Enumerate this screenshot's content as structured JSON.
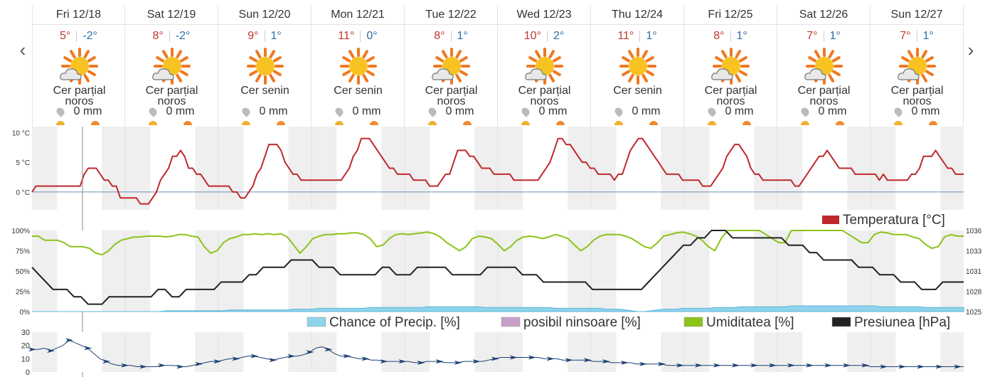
{
  "nav": {
    "prev_glyph": "‹",
    "next_glyph": "›"
  },
  "days": [
    {
      "name": "Fri 12/18",
      "max": "5°",
      "min": "-2°",
      "icon": "partly-cloudy-icon",
      "desc1": "Cer parțial",
      "desc2": "noros",
      "precip": "0 mm"
    },
    {
      "name": "Sat 12/19",
      "max": "8°",
      "min": "-2°",
      "icon": "partly-cloudy-icon",
      "desc1": "Cer parțial",
      "desc2": "noros",
      "precip": "0 mm"
    },
    {
      "name": "Sun 12/20",
      "max": "9°",
      "min": "1°",
      "icon": "sun-icon",
      "desc1": "Cer senin",
      "desc2": "",
      "precip": "0 mm"
    },
    {
      "name": "Mon 12/21",
      "max": "11°",
      "min": "0°",
      "icon": "sun-icon",
      "desc1": "Cer senin",
      "desc2": "",
      "precip": "0 mm"
    },
    {
      "name": "Tue 12/22",
      "max": "8°",
      "min": "1°",
      "icon": "partly-cloudy-icon",
      "desc1": "Cer parțial",
      "desc2": "noros",
      "precip": "0 mm"
    },
    {
      "name": "Wed 12/23",
      "max": "10°",
      "min": "2°",
      "icon": "partly-cloudy-icon",
      "desc1": "Cer parțial",
      "desc2": "noros",
      "precip": "0 mm"
    },
    {
      "name": "Thu 12/24",
      "max": "11°",
      "min": "1°",
      "icon": "sun-icon",
      "desc1": "Cer senin",
      "desc2": "",
      "precip": "0 mm"
    },
    {
      "name": "Fri 12/25",
      "max": "8°",
      "min": "1°",
      "icon": "partly-cloudy-icon",
      "desc1": "Cer parțial",
      "desc2": "noros",
      "precip": "0 mm"
    },
    {
      "name": "Sat 12/26",
      "max": "7°",
      "min": "1°",
      "icon": "partly-cloudy-icon",
      "desc1": "Cer parțial",
      "desc2": "noros",
      "precip": "0 mm"
    },
    {
      "name": "Sun 12/27",
      "max": "7°",
      "min": "1°",
      "icon": "partly-cloudy-icon",
      "desc1": "Cer parțial",
      "desc2": "noros",
      "precip": "0 mm"
    }
  ],
  "colors": {
    "temperature": "#c0282d",
    "humidity": "#8cc41a",
    "pressure": "#222222",
    "precip_chance": "#8fd3ec",
    "snow": "#c9a0c9",
    "wind": "#1d3f73",
    "zero_line": "#6a8fb0",
    "night_band": "#efefef"
  },
  "chart_data": [
    {
      "type": "line",
      "ylabel": "",
      "ylim": [
        -3,
        11
      ],
      "yticks": [
        "10 °C",
        "5 °C",
        "0 °C"
      ],
      "ytick_values": [
        10,
        5,
        0
      ],
      "series": [
        {
          "name": "Temperatura [°C]",
          "values": [
            0,
            1,
            1,
            1,
            1,
            1,
            1,
            1,
            1,
            1,
            1,
            1,
            1,
            3,
            4,
            4,
            4,
            3,
            2,
            2,
            1,
            1,
            -1,
            -1,
            -1,
            -1,
            -1,
            -2,
            -2,
            -2,
            -1,
            0,
            2,
            3,
            4,
            6,
            6,
            7,
            6,
            4,
            4,
            3,
            3,
            2,
            1,
            1,
            1,
            1,
            1,
            1,
            0,
            0,
            -1,
            -1,
            0,
            1,
            3,
            4,
            6,
            8,
            8,
            8,
            7,
            5,
            4,
            3,
            3,
            2,
            2,
            2,
            2,
            2,
            2,
            2,
            2,
            2,
            2,
            2,
            3,
            4,
            6,
            7,
            9,
            9,
            9,
            8,
            7,
            6,
            5,
            4,
            4,
            3,
            3,
            3,
            3,
            2,
            2,
            2,
            2,
            1,
            1,
            1,
            2,
            3,
            3,
            5,
            7,
            7,
            7,
            6,
            6,
            5,
            4,
            4,
            4,
            3,
            3,
            3,
            3,
            3,
            2,
            2,
            2,
            2,
            2,
            2,
            2,
            3,
            4,
            5,
            7,
            9,
            9,
            8,
            8,
            7,
            6,
            5,
            5,
            4,
            4,
            3,
            3,
            3,
            3,
            2,
            3,
            3,
            5,
            7,
            8,
            9,
            9,
            8,
            7,
            6,
            5,
            4,
            3,
            3,
            3,
            3,
            2,
            2,
            2,
            2,
            2,
            1,
            1,
            1,
            2,
            3,
            4,
            6,
            7,
            8,
            8,
            7,
            6,
            4,
            3,
            3,
            2,
            2,
            2,
            2,
            2,
            2,
            2,
            2,
            1,
            1,
            2,
            3,
            4,
            5,
            6,
            6,
            7,
            6,
            5,
            4,
            4,
            4,
            4,
            3,
            3,
            3,
            3,
            3,
            3,
            2,
            3,
            2,
            2,
            2,
            2,
            2,
            2,
            3,
            3,
            4,
            6,
            6,
            6,
            7,
            6,
            5,
            4,
            4,
            3,
            3,
            3
          ]
        }
      ]
    },
    {
      "type": "line",
      "title": "",
      "legend_top": "Temperatura [°C]",
      "yticks_left": [
        "100%",
        "75%",
        "50%",
        "25%",
        "0%"
      ],
      "yticks_right": [
        "1036",
        "1033",
        "1031",
        "1028",
        "1025"
      ],
      "ylim_left": [
        0,
        100
      ],
      "ylim_right": [
        1025,
        1036
      ],
      "legend": [
        "Chance of Precip. [%]",
        "posibil ninsoare [%]",
        "Umiditatea [%]",
        "Presiunea [hPa]"
      ],
      "series": [
        {
          "name": "Umiditatea [%]",
          "values": [
            93,
            93,
            88,
            88,
            88,
            85,
            80,
            80,
            80,
            78,
            72,
            70,
            75,
            83,
            88,
            90,
            92,
            92,
            93,
            93,
            93,
            92,
            93,
            95,
            95,
            93,
            92,
            80,
            72,
            75,
            85,
            90,
            92,
            95,
            95,
            96,
            95,
            96,
            95,
            96,
            92,
            82,
            72,
            80,
            90,
            93,
            95,
            95,
            96,
            96,
            97,
            97,
            95,
            90,
            80,
            82,
            90,
            95,
            96,
            95,
            96,
            97,
            98,
            96,
            92,
            85,
            80,
            75,
            80,
            90,
            93,
            92,
            90,
            83,
            75,
            80,
            88,
            92,
            93,
            92,
            90,
            92,
            95,
            93,
            90,
            82,
            75,
            80,
            88,
            93,
            95,
            95,
            95,
            93,
            90,
            85,
            80,
            78,
            85,
            93,
            95,
            97,
            98,
            96,
            93,
            88,
            80,
            75,
            90,
            100,
            100,
            100,
            100,
            100,
            100,
            95,
            90,
            85,
            85,
            100,
            100,
            100,
            100,
            100,
            100,
            100,
            100,
            100,
            95,
            90,
            85,
            85,
            95,
            98,
            97,
            95,
            95,
            95,
            92,
            90,
            83,
            78,
            80,
            92,
            95,
            93,
            93
          ]
        },
        {
          "name": "Presiunea [hPa]",
          "values": [
            1031,
            1030,
            1029,
            1028,
            1028,
            1028,
            1027,
            1027,
            1026,
            1026,
            1026,
            1027,
            1027,
            1027,
            1027,
            1027,
            1027,
            1027,
            1028,
            1028,
            1027,
            1027,
            1028,
            1028,
            1028,
            1028,
            1028,
            1029,
            1029,
            1029,
            1029,
            1030,
            1030,
            1031,
            1031,
            1031,
            1031,
            1032,
            1032,
            1032,
            1032,
            1031,
            1031,
            1031,
            1030,
            1030,
            1030,
            1030,
            1030,
            1030,
            1031,
            1031,
            1030,
            1030,
            1030,
            1031,
            1031,
            1031,
            1031,
            1031,
            1030,
            1030,
            1030,
            1030,
            1030,
            1031,
            1031,
            1031,
            1031,
            1031,
            1030,
            1030,
            1030,
            1029,
            1029,
            1029,
            1029,
            1029,
            1029,
            1029,
            1028,
            1028,
            1028,
            1028,
            1028,
            1028,
            1028,
            1028,
            1029,
            1030,
            1031,
            1032,
            1033,
            1034,
            1034,
            1035,
            1035,
            1036,
            1036,
            1036,
            1035,
            1035,
            1035,
            1035,
            1035,
            1035,
            1035,
            1035,
            1034,
            1034,
            1034,
            1033,
            1033,
            1032,
            1032,
            1032,
            1032,
            1032,
            1031,
            1031,
            1031,
            1030,
            1030,
            1030,
            1029,
            1029,
            1029,
            1028,
            1028,
            1028,
            1029,
            1029,
            1029,
            1029
          ]
        },
        {
          "name": "Chance of Precip. [%]",
          "values": [
            0,
            0,
            0,
            0,
            0,
            0,
            0,
            0,
            0,
            0,
            0,
            0,
            0,
            0,
            0,
            0,
            0,
            0,
            0,
            0,
            0,
            1,
            1,
            1,
            1,
            1,
            1,
            1,
            1,
            1,
            1,
            2,
            2,
            2,
            2,
            2,
            2,
            2,
            2,
            2,
            2,
            3,
            3,
            3,
            3,
            4,
            4,
            4,
            4,
            4,
            4,
            4,
            4,
            5,
            5,
            5,
            5,
            5,
            5,
            5,
            5,
            5,
            6,
            6,
            6,
            6,
            6,
            6,
            6,
            6,
            6,
            5,
            5,
            5,
            5,
            5,
            5,
            5,
            5,
            5,
            5,
            5,
            4,
            4,
            4,
            4,
            4,
            4,
            4,
            4,
            3,
            3,
            3,
            2,
            1,
            0,
            0,
            1,
            2,
            3,
            3,
            3,
            4,
            4,
            4,
            4,
            4,
            5,
            5,
            5,
            5,
            6,
            6,
            6,
            6,
            6,
            6,
            6,
            6,
            7,
            7,
            7,
            7,
            7,
            7,
            7,
            7,
            7,
            7,
            7,
            7,
            7,
            7,
            6,
            6,
            6,
            6,
            6,
            6,
            6,
            5,
            5,
            5,
            5,
            5,
            5,
            5
          ]
        },
        {
          "name": "posibil ninsoare [%]",
          "values": []
        }
      ]
    },
    {
      "type": "line",
      "yticks": [
        "30",
        "20",
        "10",
        "0"
      ],
      "ylim": [
        0,
        30
      ],
      "series": [
        {
          "name": "",
          "values": [
            17,
            17,
            18,
            16,
            18,
            20,
            24,
            22,
            20,
            18,
            14,
            10,
            8,
            6,
            5,
            5,
            5,
            4,
            4,
            4,
            4,
            5,
            5,
            5,
            4,
            4,
            5,
            6,
            7,
            8,
            8,
            9,
            10,
            10,
            11,
            12,
            12,
            11,
            10,
            9,
            10,
            11,
            12,
            12,
            13,
            15,
            18,
            19,
            17,
            14,
            12,
            12,
            11,
            10,
            10,
            9,
            9,
            8,
            8,
            8,
            8,
            8,
            7,
            7,
            8,
            8,
            8,
            7,
            7,
            7,
            8,
            8,
            8,
            8,
            9,
            10,
            11,
            11,
            11,
            11,
            11,
            11,
            11,
            10,
            10,
            10,
            9,
            9,
            9,
            9,
            9,
            8,
            8,
            8,
            7,
            7,
            7,
            7,
            6,
            6,
            6,
            6,
            6,
            5,
            5,
            5,
            5,
            5,
            5,
            5,
            5,
            5,
            5,
            5,
            5,
            5,
            5,
            5,
            5,
            5,
            5,
            5,
            5,
            5,
            5,
            5,
            5,
            5,
            5,
            5,
            5,
            5,
            5,
            5,
            5,
            5,
            4,
            4,
            4,
            4,
            4,
            4,
            4,
            4,
            4,
            4,
            4,
            4,
            4,
            4,
            4,
            4
          ]
        }
      ]
    }
  ]
}
